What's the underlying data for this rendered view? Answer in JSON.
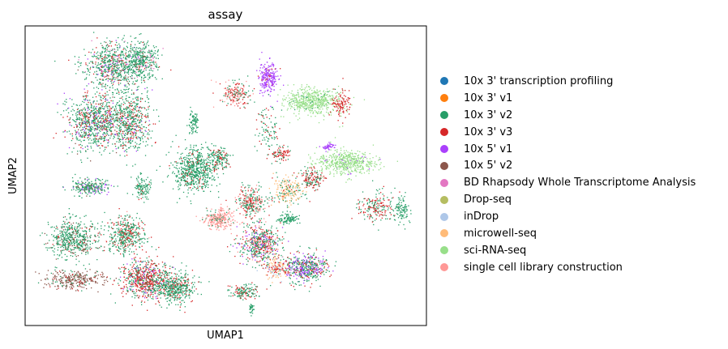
{
  "chart_data": {
    "type": "scatter",
    "title": "assay",
    "xlabel": "UMAP1",
    "ylabel": "UMAP2",
    "grid": false,
    "ticks": false,
    "legend_position": "right",
    "series": [
      {
        "name": "10x 3' transcription profiling",
        "color": "#1f77b4"
      },
      {
        "name": "10x 3' v1",
        "color": "#ff7f0e"
      },
      {
        "name": "10x 3' v2",
        "color": "#279e68"
      },
      {
        "name": "10x 3' v3",
        "color": "#d62728"
      },
      {
        "name": "10x 5' v1",
        "color": "#aa40fc"
      },
      {
        "name": "10x 5' v2",
        "color": "#8c564b"
      },
      {
        "name": "BD Rhapsody Whole Transcriptome Analysis",
        "color": "#e377c2"
      },
      {
        "name": "Drop-seq",
        "color": "#b5bd61"
      },
      {
        "name": "inDrop",
        "color": "#aec7e8"
      },
      {
        "name": "microwell-seq",
        "color": "#ffbb78"
      },
      {
        "name": "sci-RNA-seq",
        "color": "#98df8a"
      },
      {
        "name": "single cell library construction",
        "color": "#ff9896"
      }
    ]
  }
}
